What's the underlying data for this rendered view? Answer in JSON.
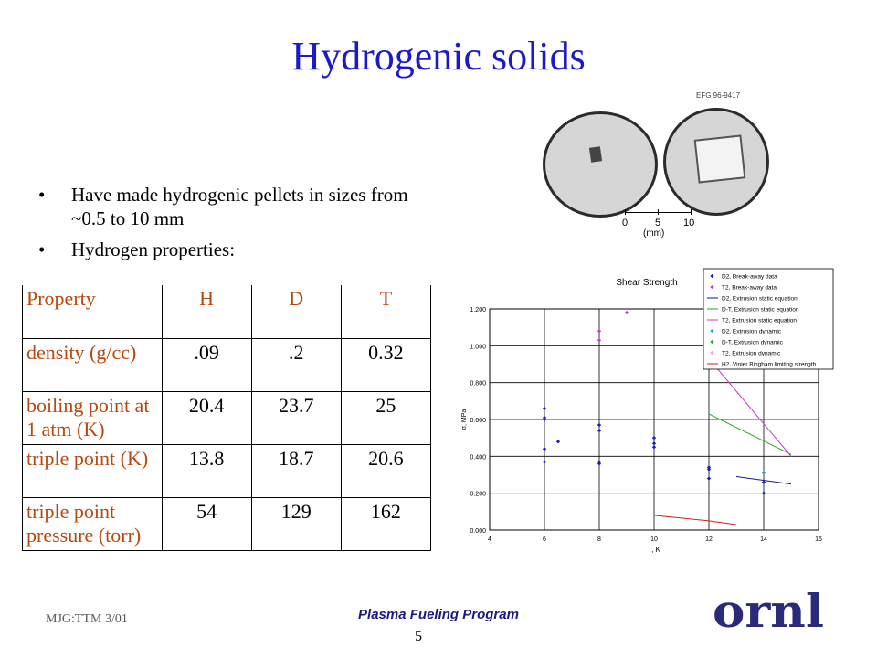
{
  "title": "Hydrogenic solids",
  "photo": {
    "code": "EFG 96-9417",
    "scale_ticks": [
      "0",
      "5",
      "10"
    ],
    "scale_unit": "(mm)"
  },
  "bullets": [
    "Have made hydrogenic pellets in sizes from ~0.5 to 10 mm",
    "Hydrogen properties:"
  ],
  "table": {
    "headers": [
      "Property",
      "H",
      "D",
      "T"
    ],
    "rows": [
      [
        "density (g/cc)",
        ".09",
        ".2",
        "0.32"
      ],
      [
        "boiling point at 1 atm (K)",
        "20.4",
        "23.7",
        "25"
      ],
      [
        "triple point (K)",
        "13.8",
        "18.7",
        "20.6"
      ],
      [
        "triple point pressure (torr)",
        "54",
        "129",
        "162"
      ]
    ]
  },
  "chart_data": {
    "type": "scatter",
    "title": "Shear Strength",
    "xlabel": "T, K",
    "ylabel": "σ, MPa",
    "xlim": [
      4,
      16
    ],
    "ylim": [
      0,
      1.2
    ],
    "xticks": [
      "4",
      "6",
      "8",
      "10",
      "12",
      "14",
      "16"
    ],
    "yticks": [
      "0.000",
      "0.200",
      "0.400",
      "0.600",
      "0.800",
      "1.000",
      "1.200"
    ],
    "legend_position": "top-right",
    "series": [
      {
        "name": "D2, Break-away data",
        "color": "#1a1acc",
        "kind": "points",
        "points": [
          [
            6,
            0.66
          ],
          [
            6,
            0.61
          ],
          [
            6,
            0.6
          ],
          [
            6,
            0.44
          ],
          [
            6,
            0.37
          ],
          [
            6.5,
            0.48
          ],
          [
            8,
            0.57
          ],
          [
            8,
            0.54
          ],
          [
            8,
            0.37
          ],
          [
            8,
            0.36
          ],
          [
            10,
            0.5
          ],
          [
            10,
            0.47
          ],
          [
            10,
            0.45
          ],
          [
            12,
            0.34
          ],
          [
            12,
            0.33
          ],
          [
            12,
            0.28
          ],
          [
            14,
            0.26
          ],
          [
            14,
            0.2
          ]
        ]
      },
      {
        "name": "T2, Break-away data",
        "color": "#cc33cc",
        "kind": "points",
        "points": [
          [
            8,
            1.08
          ],
          [
            8,
            1.03
          ],
          [
            9,
            1.18
          ]
        ]
      },
      {
        "name": "D2, Extrusion static equation",
        "color": "#1a1a80",
        "kind": "line",
        "points": [
          [
            13,
            0.29
          ],
          [
            15,
            0.25
          ]
        ]
      },
      {
        "name": "D-T, Extrusion static equation",
        "color": "#22aa22",
        "kind": "line",
        "points": [
          [
            12,
            0.63
          ],
          [
            15,
            0.41
          ]
        ]
      },
      {
        "name": "T2, Extrusion static equation",
        "color": "#cc33cc",
        "kind": "line",
        "points": [
          [
            12,
            0.93
          ],
          [
            15,
            0.4
          ]
        ]
      },
      {
        "name": "D2, Extrusion dynamic",
        "color": "#22aacc",
        "kind": "points",
        "points": [
          [
            14,
            0.31
          ]
        ]
      },
      {
        "name": "D-T, Extrusion dynamic",
        "color": "#22aa22",
        "kind": "points",
        "points": []
      },
      {
        "name": "T2, Extrusion dynamic",
        "color": "#ff99cc",
        "kind": "points",
        "points": []
      },
      {
        "name": "H2, Vinier Bingham limiting strength",
        "color": "#cc2222",
        "kind": "line",
        "points": [
          [
            10,
            0.08
          ],
          [
            11,
            0.065
          ],
          [
            12,
            0.05
          ],
          [
            13,
            0.03
          ]
        ]
      }
    ]
  },
  "footer": {
    "left": "MJG:TTM 3/01",
    "center": "Plasma Fueling Program",
    "page": "5",
    "logo": "ornl"
  },
  "colors": {
    "title": "#1a1acc",
    "table_text": "#b8480f",
    "footer": "#1a1a80",
    "logo": "#2a2a7a"
  }
}
